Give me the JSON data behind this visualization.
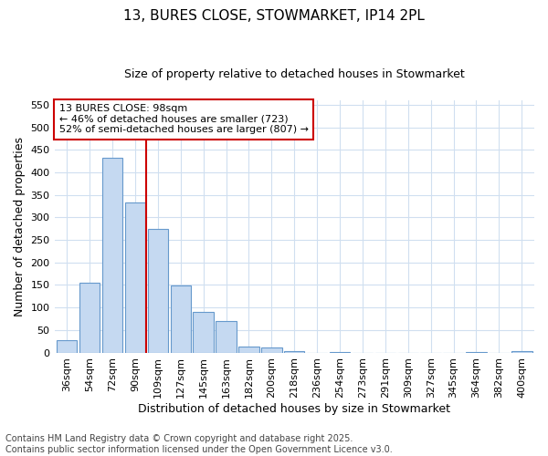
{
  "title": "13, BURES CLOSE, STOWMARKET, IP14 2PL",
  "subtitle": "Size of property relative to detached houses in Stowmarket",
  "xlabel": "Distribution of detached houses by size in Stowmarket",
  "ylabel": "Number of detached properties",
  "categories": [
    "36sqm",
    "54sqm",
    "72sqm",
    "90sqm",
    "109sqm",
    "127sqm",
    "145sqm",
    "163sqm",
    "182sqm",
    "200sqm",
    "218sqm",
    "236sqm",
    "254sqm",
    "273sqm",
    "291sqm",
    "309sqm",
    "327sqm",
    "345sqm",
    "364sqm",
    "382sqm",
    "400sqm"
  ],
  "values": [
    28,
    155,
    432,
    333,
    275,
    148,
    90,
    70,
    13,
    11,
    4,
    0,
    2,
    0,
    0,
    0,
    0,
    0,
    1,
    0,
    3
  ],
  "bar_color": "#c5d9f1",
  "bar_edge_color": "#6699cc",
  "vline_x": 3.5,
  "vline_color": "#cc0000",
  "annotation_line1": "13 BURES CLOSE: 98sqm",
  "annotation_line2": "← 46% of detached houses are smaller (723)",
  "annotation_line3": "52% of semi-detached houses are larger (807) →",
  "annotation_box_color": "#ffffff",
  "annotation_box_edge": "#cc0000",
  "ylim": [
    0,
    560
  ],
  "yticks": [
    0,
    50,
    100,
    150,
    200,
    250,
    300,
    350,
    400,
    450,
    500,
    550
  ],
  "footer_text": "Contains HM Land Registry data © Crown copyright and database right 2025.\nContains public sector information licensed under the Open Government Licence v3.0.",
  "background_color": "#ffffff",
  "plot_bg_color": "#ffffff",
  "grid_color": "#d0dff0",
  "title_fontsize": 11,
  "subtitle_fontsize": 9,
  "axis_label_fontsize": 9,
  "tick_fontsize": 8,
  "annotation_fontsize": 8,
  "footer_fontsize": 7
}
